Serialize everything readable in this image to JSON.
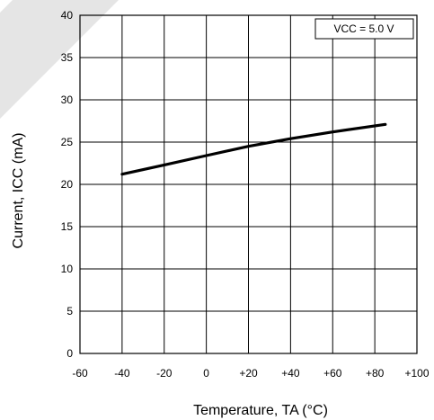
{
  "chart_data": {
    "type": "line",
    "ylabel": "Current, ICC (mA)",
    "xlabel": "Temperature, TA (°C)",
    "annotation": "VCC = 5.0 V",
    "xlim": [
      -60,
      100
    ],
    "ylim": [
      0,
      40
    ],
    "x_ticks": [
      -60,
      -40,
      -20,
      0,
      20,
      40,
      60,
      80,
      100
    ],
    "x_tick_labels": [
      "-60",
      "-40",
      "-20",
      "0",
      "+20",
      "+40",
      "+60",
      "+80",
      "+100"
    ],
    "y_ticks": [
      0,
      5,
      10,
      15,
      20,
      25,
      30,
      35,
      40
    ],
    "y_tick_labels": [
      "0",
      "5",
      "10",
      "15",
      "20",
      "25",
      "30",
      "35",
      "40"
    ],
    "grid": true,
    "series": [
      {
        "x": [
          -40,
          -20,
          0,
          20,
          40,
          60,
          85
        ],
        "y": [
          21.2,
          22.3,
          23.4,
          24.5,
          25.4,
          26.2,
          27.1
        ]
      }
    ]
  },
  "colors": {
    "line": "#000000",
    "grid": "#000000",
    "background": "#ffffff",
    "watermark": "#e2e2e2"
  }
}
